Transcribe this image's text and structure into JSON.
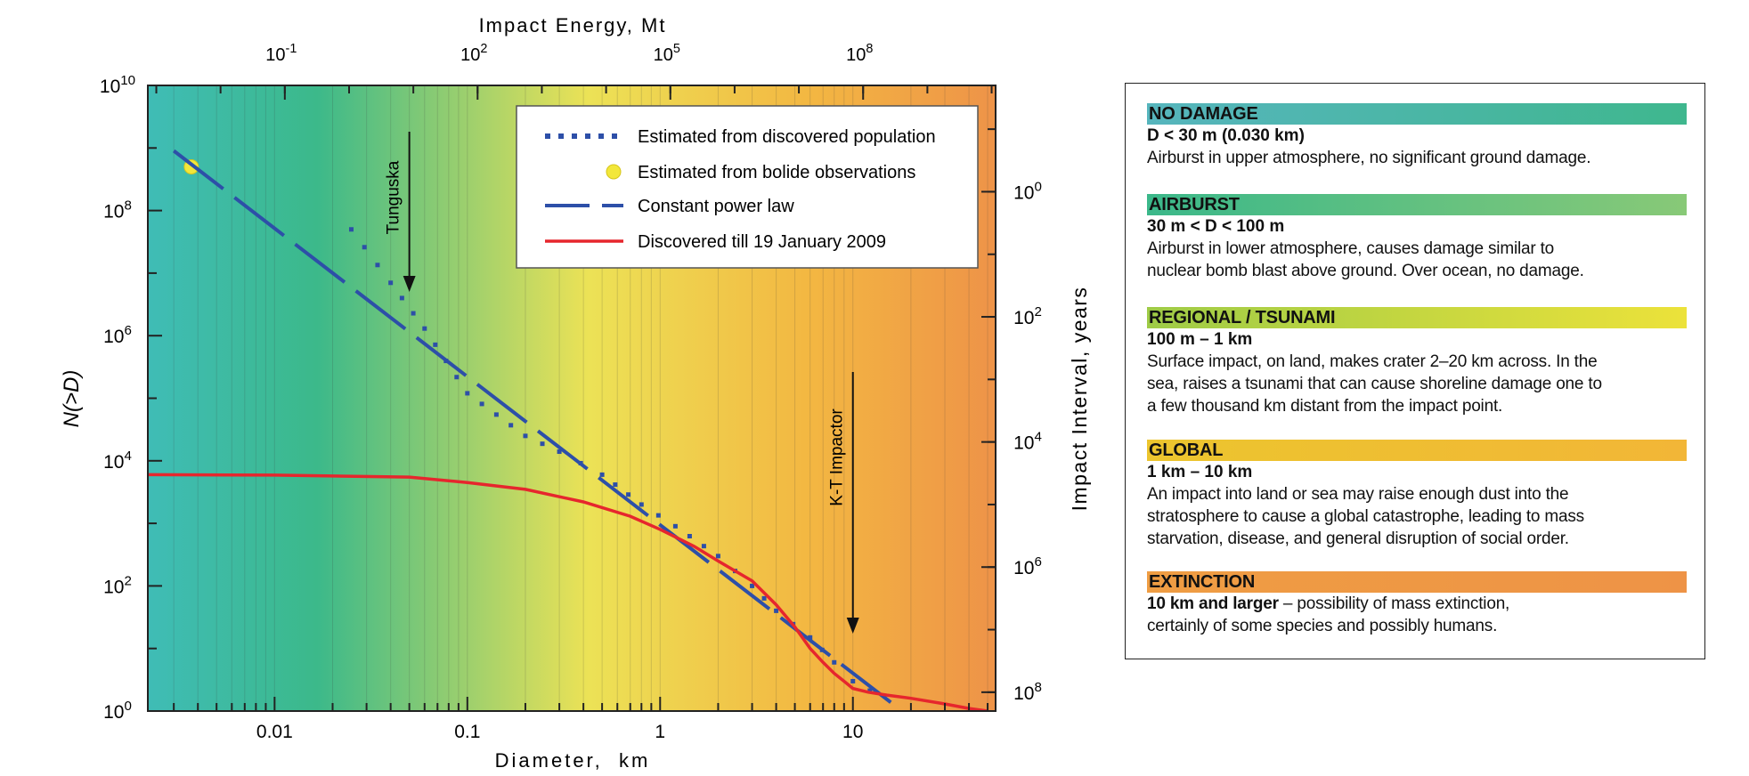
{
  "colors": {
    "no_damage": "#3fbcb6",
    "airburst": "#3cb98a",
    "regional": "#b9d249",
    "global": "#f0b838",
    "extinction": "#ee9348",
    "red_line": "#e6262d",
    "blue_line": "#2d4fa8"
  },
  "chart_data": {
    "type": "line",
    "title": "",
    "xlabel": "Diameter,  km",
    "ylabel": "N(>D)",
    "xlabel_top": "Impact Energy, Mt",
    "ylabel_right": "Impact Interval, years",
    "x_scale": "log",
    "y_scale": "log",
    "xlim": [
      0.0022,
      55
    ],
    "ylim": [
      1,
      10000000000
    ],
    "x_ticks": [
      {
        "value": 0.01,
        "label": "0.01"
      },
      {
        "value": 0.1,
        "label": "0.1"
      },
      {
        "value": 1,
        "label": "1"
      },
      {
        "value": 10,
        "label": "10"
      }
    ],
    "y_ticks": [
      {
        "value": 1,
        "base": "10",
        "exp": "0"
      },
      {
        "value": 100,
        "base": "10",
        "exp": "2"
      },
      {
        "value": 10000,
        "base": "10",
        "exp": "4"
      },
      {
        "value": 1000000,
        "base": "10",
        "exp": "6"
      },
      {
        "value": 100000000,
        "base": "10",
        "exp": "8"
      },
      {
        "value": 10000000000,
        "base": "10",
        "exp": "10"
      }
    ],
    "top_ticks": [
      {
        "diameter_km": 0.0113,
        "base": "10",
        "exp": "-1"
      },
      {
        "diameter_km": 0.113,
        "base": "10",
        "exp": "2"
      },
      {
        "diameter_km": 1.13,
        "base": "10",
        "exp": "5"
      },
      {
        "diameter_km": 11.3,
        "base": "10",
        "exp": "8"
      }
    ],
    "right_ticks": [
      {
        "n_value": 200000000,
        "base": "10",
        "exp": "0"
      },
      {
        "n_value": 2000000,
        "base": "10",
        "exp": "2"
      },
      {
        "n_value": 20000,
        "base": "10",
        "exp": "4"
      },
      {
        "n_value": 200,
        "base": "10",
        "exp": "6"
      },
      {
        "n_value": 2,
        "base": "10",
        "exp": "8"
      }
    ],
    "series": [
      {
        "name": "Estimated from discovered population",
        "style": "dotted",
        "x": [
          0.025,
          0.04,
          0.06,
          0.1,
          0.2,
          0.3,
          0.5,
          0.8,
          1.2,
          2,
          3,
          4,
          6,
          8,
          10,
          15
        ],
        "y": [
          50000000,
          7000000,
          1300000,
          120000,
          25000,
          14000,
          6000,
          2000,
          900,
          300,
          100,
          40,
          15,
          6,
          3,
          1.5
        ]
      },
      {
        "name": "Estimated from bolide observations",
        "style": "point",
        "x": [
          0.0037
        ],
        "y": [
          500000000
        ]
      },
      {
        "name": "Constant power law",
        "style": "dashed",
        "x": [
          0.003,
          18
        ],
        "y": [
          900000000,
          1
        ]
      },
      {
        "name": "Discovered till 19 January 2009",
        "style": "solid",
        "x": [
          0.0022,
          0.01,
          0.05,
          0.1,
          0.2,
          0.4,
          0.7,
          1,
          1.5,
          2,
          3,
          4,
          5,
          6,
          7,
          8,
          9,
          10,
          12,
          15,
          20,
          30,
          40,
          50
        ],
        "y": [
          6000,
          5900,
          5500,
          4500,
          3500,
          2200,
          1300,
          800,
          430,
          250,
          120,
          50,
          22,
          10,
          6,
          4,
          3,
          2.3,
          2,
          1.8,
          1.6,
          1.3,
          1.1,
          1
        ]
      }
    ],
    "annotations": [
      {
        "text": "Tunguska",
        "x": 0.05
      },
      {
        "text": "K-T Impactor",
        "x": 10
      }
    ],
    "regions": [
      {
        "name": "no_damage",
        "from": 0.0022,
        "to": 0.03
      },
      {
        "name": "airburst",
        "from": 0.03,
        "to": 0.1
      },
      {
        "name": "regional",
        "from": 0.1,
        "to": 1
      },
      {
        "name": "global",
        "from": 1,
        "to": 10
      },
      {
        "name": "extinction",
        "from": 10,
        "to": 55
      }
    ],
    "legend_position": "top-right"
  },
  "categories": [
    {
      "title": "NO DAMAGE",
      "range": "D < 30 m (0.030 km)",
      "desc": [
        "Airburst in upper atmosphere, no significant ground damage."
      ]
    },
    {
      "title": "AIRBURST",
      "range": "30 m < D < 100 m",
      "desc": [
        "Airburst in lower atmosphere, causes damage similar to",
        "nuclear bomb blast above ground. Over ocean, no damage."
      ]
    },
    {
      "title": "REGIONAL / TSUNAMI",
      "range": "100 m – 1 km",
      "desc": [
        "Surface impact, on land, makes crater 2–20 km across. In the",
        "sea, raises a tsunami that can cause shoreline damage one to",
        "a few thousand km distant from the impact point."
      ]
    },
    {
      "title": "GLOBAL",
      "range": "1 km – 10 km",
      "desc": [
        "An impact into land or sea may raise enough dust into the",
        "stratosphere to cause a global catastrophe, leading to mass",
        "starvation, disease, and general disruption of social order."
      ]
    },
    {
      "title": "EXTINCTION",
      "range_inline": "10 km and larger",
      "desc_inline": " – possibility of mass extinction,",
      "desc": [
        "certainly of some species and possibly humans."
      ]
    }
  ]
}
